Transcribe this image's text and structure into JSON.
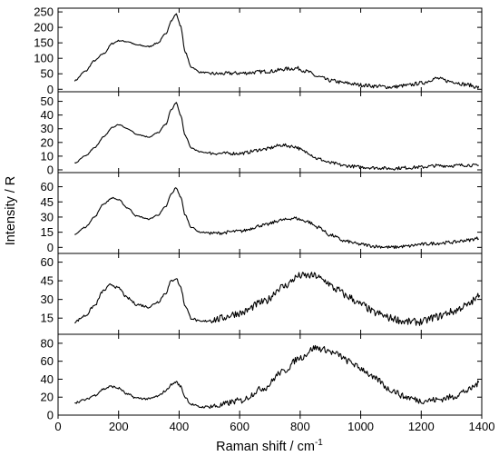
{
  "chart_data": {
    "type": "line",
    "layout": "stacked-panels",
    "xlabel": "Raman shift / cm",
    "xlabel_superscript": "-1",
    "ylabel": "Intensity / R",
    "xlim": [
      0,
      1400
    ],
    "xticks": [
      0,
      200,
      400,
      600,
      800,
      1000,
      1200,
      1400
    ],
    "grid": false,
    "legend": "none",
    "panels": [
      {
        "ylim": [
          -8,
          262
        ],
        "yticks": [
          0,
          50,
          100,
          150,
          200,
          250
        ],
        "points": [
          [
            55,
            28
          ],
          [
            90,
            58
          ],
          [
            120,
            92
          ],
          [
            150,
            115
          ],
          [
            180,
            148
          ],
          [
            200,
            157
          ],
          [
            230,
            154
          ],
          [
            260,
            143
          ],
          [
            300,
            138
          ],
          [
            330,
            150
          ],
          [
            355,
            178
          ],
          [
            375,
            222
          ],
          [
            390,
            243
          ],
          [
            405,
            205
          ],
          [
            420,
            120
          ],
          [
            440,
            72
          ],
          [
            470,
            55
          ],
          [
            520,
            50
          ],
          [
            600,
            52
          ],
          [
            700,
            58
          ],
          [
            760,
            66
          ],
          [
            790,
            68
          ],
          [
            820,
            58
          ],
          [
            860,
            40
          ],
          [
            900,
            28
          ],
          [
            950,
            20
          ],
          [
            1000,
            14
          ],
          [
            1050,
            10
          ],
          [
            1100,
            7
          ],
          [
            1150,
            12
          ],
          [
            1200,
            20
          ],
          [
            1250,
            35
          ],
          [
            1300,
            25
          ],
          [
            1350,
            15
          ],
          [
            1390,
            6
          ]
        ],
        "noise": 6
      },
      {
        "ylim": [
          -2,
          57
        ],
        "yticks": [
          0,
          10,
          20,
          30,
          40,
          50
        ],
        "points": [
          [
            55,
            5
          ],
          [
            90,
            10
          ],
          [
            120,
            16
          ],
          [
            150,
            24
          ],
          [
            180,
            31
          ],
          [
            200,
            33
          ],
          [
            230,
            30
          ],
          [
            260,
            26
          ],
          [
            300,
            24
          ],
          [
            330,
            27
          ],
          [
            355,
            33
          ],
          [
            375,
            44
          ],
          [
            390,
            49
          ],
          [
            405,
            40
          ],
          [
            420,
            25
          ],
          [
            440,
            16
          ],
          [
            470,
            13
          ],
          [
            520,
            12
          ],
          [
            600,
            12
          ],
          [
            680,
            15
          ],
          [
            740,
            18
          ],
          [
            780,
            17
          ],
          [
            820,
            13
          ],
          [
            860,
            8
          ],
          [
            900,
            5
          ],
          [
            950,
            3
          ],
          [
            1000,
            2
          ],
          [
            1050,
            1.5
          ],
          [
            1100,
            1
          ],
          [
            1150,
            1.5
          ],
          [
            1200,
            2
          ],
          [
            1250,
            3
          ],
          [
            1300,
            3
          ],
          [
            1350,
            3.5
          ],
          [
            1390,
            3
          ]
        ],
        "noise": 1.2
      },
      {
        "ylim": [
          -6,
          74
        ],
        "yticks": [
          0,
          15,
          30,
          45,
          60
        ],
        "points": [
          [
            55,
            13
          ],
          [
            90,
            20
          ],
          [
            120,
            30
          ],
          [
            150,
            43
          ],
          [
            180,
            49
          ],
          [
            200,
            47
          ],
          [
            230,
            39
          ],
          [
            260,
            31
          ],
          [
            300,
            28
          ],
          [
            330,
            32
          ],
          [
            355,
            40
          ],
          [
            375,
            53
          ],
          [
            390,
            59
          ],
          [
            405,
            50
          ],
          [
            420,
            32
          ],
          [
            440,
            20
          ],
          [
            470,
            15
          ],
          [
            520,
            14
          ],
          [
            600,
            16
          ],
          [
            680,
            22
          ],
          [
            740,
            27
          ],
          [
            780,
            29
          ],
          [
            820,
            26
          ],
          [
            860,
            20
          ],
          [
            900,
            12
          ],
          [
            950,
            6
          ],
          [
            1000,
            3
          ],
          [
            1050,
            1
          ],
          [
            1100,
            0
          ],
          [
            1150,
            1
          ],
          [
            1200,
            3
          ],
          [
            1250,
            4
          ],
          [
            1300,
            5
          ],
          [
            1350,
            7
          ],
          [
            1390,
            9
          ]
        ],
        "noise": 1.6
      },
      {
        "ylim": [
          2,
          67
        ],
        "yticks": [
          15,
          30,
          45,
          60
        ],
        "points": [
          [
            55,
            12
          ],
          [
            90,
            17
          ],
          [
            120,
            25
          ],
          [
            150,
            37
          ],
          [
            175,
            42
          ],
          [
            200,
            39
          ],
          [
            230,
            31
          ],
          [
            260,
            26
          ],
          [
            300,
            24
          ],
          [
            330,
            28
          ],
          [
            355,
            35
          ],
          [
            375,
            45
          ],
          [
            390,
            47
          ],
          [
            405,
            40
          ],
          [
            420,
            25
          ],
          [
            440,
            15
          ],
          [
            470,
            12
          ],
          [
            520,
            14
          ],
          [
            600,
            19
          ],
          [
            680,
            28
          ],
          [
            740,
            40
          ],
          [
            800,
            49
          ],
          [
            850,
            49
          ],
          [
            880,
            45
          ],
          [
            920,
            38
          ],
          [
            960,
            32
          ],
          [
            1000,
            26
          ],
          [
            1050,
            19
          ],
          [
            1100,
            15
          ],
          [
            1150,
            12
          ],
          [
            1200,
            12
          ],
          [
            1250,
            16
          ],
          [
            1300,
            20
          ],
          [
            1350,
            25
          ],
          [
            1380,
            30
          ],
          [
            1395,
            36
          ]
        ],
        "noise": 3
      },
      {
        "ylim": [
          0,
          90
        ],
        "yticks": [
          0,
          20,
          40,
          60,
          80
        ],
        "points": [
          [
            55,
            14
          ],
          [
            90,
            17
          ],
          [
            120,
            22
          ],
          [
            150,
            29
          ],
          [
            175,
            32
          ],
          [
            200,
            30
          ],
          [
            230,
            23
          ],
          [
            260,
            19
          ],
          [
            300,
            18
          ],
          [
            330,
            21
          ],
          [
            355,
            27
          ],
          [
            375,
            34
          ],
          [
            390,
            37
          ],
          [
            405,
            32
          ],
          [
            420,
            20
          ],
          [
            440,
            12
          ],
          [
            470,
            9
          ],
          [
            520,
            10
          ],
          [
            600,
            16
          ],
          [
            680,
            30
          ],
          [
            740,
            48
          ],
          [
            800,
            64
          ],
          [
            850,
            75
          ],
          [
            880,
            73
          ],
          [
            920,
            68
          ],
          [
            960,
            60
          ],
          [
            1000,
            52
          ],
          [
            1050,
            40
          ],
          [
            1100,
            28
          ],
          [
            1150,
            20
          ],
          [
            1200,
            16
          ],
          [
            1250,
            17
          ],
          [
            1300,
            20
          ],
          [
            1350,
            27
          ],
          [
            1390,
            35
          ]
        ],
        "noise": 3.5
      }
    ]
  }
}
